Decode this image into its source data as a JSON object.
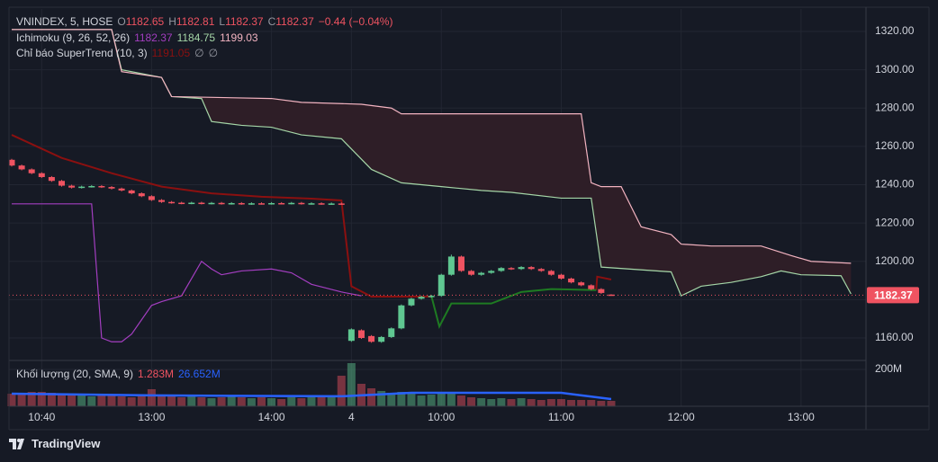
{
  "chart_data": {
    "type": "candlestick",
    "xlim": [
      -0.27,
      85.5
    ],
    "xticks": [
      {
        "value": 3,
        "label": "10:40"
      },
      {
        "value": 14,
        "label": "13:00"
      },
      {
        "value": 26,
        "label": "14:00"
      },
      {
        "value": 34,
        "label": "4"
      },
      {
        "value": 43,
        "label": "10:00"
      },
      {
        "value": 55,
        "label": "11:00"
      },
      {
        "value": 67,
        "label": "12:00"
      },
      {
        "value": 79,
        "label": "13:00"
      }
    ],
    "ylim": [
      1148.74,
      1331.73
    ],
    "yticks": [
      {
        "value": 1160,
        "label": "1160.00"
      },
      {
        "value": 1180,
        "label": "1180.00"
      },
      {
        "value": 1200,
        "label": "1200.00"
      },
      {
        "value": 1220,
        "label": "1220.00"
      },
      {
        "value": 1240,
        "label": "1240.00"
      },
      {
        "value": 1260,
        "label": "1260.00"
      },
      {
        "value": 1280,
        "label": "1280.00"
      },
      {
        "value": 1300,
        "label": "1300.00"
      },
      {
        "value": 1320,
        "label": "1320.00"
      }
    ],
    "grid": true,
    "up_color": "#5fc791",
    "down_color": "#ef5361",
    "open": [
      1253,
      1250,
      1248,
      1246,
      1244,
      1242,
      1239.5,
      1238.5,
      1239,
      1239.3,
      1238.8,
      1238,
      1237,
      1235.5,
      1234,
      1232,
      1231,
      1230.6,
      1230.3,
      1230.6,
      1230.2,
      1230.5,
      1230.1,
      1230.4,
      1230,
      1230.3,
      1230.1,
      1230.4,
      1230.2,
      1230.5,
      1230.1,
      1230.3,
      1230,
      1230.2,
      1158.5,
      1164,
      1161,
      1158,
      1160.5,
      1165,
      1177,
      1180.5,
      1181.5,
      1182,
      1193,
      1202.5,
      1195,
      1193,
      1194,
      1195,
      1196.5,
      1196,
      1197,
      1196,
      1195,
      1193,
      1191,
      1189,
      1187.5,
      1185.5,
      1182.65
    ],
    "high": [
      1253.5,
      1250.5,
      1248.5,
      1246.5,
      1244.5,
      1242.5,
      1240,
      1239.5,
      1239.8,
      1239.8,
      1239.3,
      1238.5,
      1237.5,
      1236,
      1234.5,
      1232.5,
      1231.5,
      1231.1,
      1231.1,
      1231.1,
      1231,
      1231,
      1230.9,
      1230.9,
      1230.8,
      1230.8,
      1230.9,
      1230.9,
      1231,
      1231,
      1230.8,
      1230.8,
      1230.7,
      1230.7,
      1165,
      1164.5,
      1161.5,
      1161,
      1165.5,
      1177.5,
      1181,
      1182,
      1182.5,
      1193.5,
      1203.5,
      1203,
      1195.5,
      1194.5,
      1195.5,
      1197,
      1197,
      1197.5,
      1197.5,
      1196.5,
      1195.5,
      1193.5,
      1191.5,
      1189.5,
      1188,
      1186,
      1182.81
    ],
    "low": [
      1249.5,
      1247.5,
      1245.5,
      1243.5,
      1241.5,
      1239,
      1238,
      1238,
      1238.5,
      1238.3,
      1237.5,
      1236.5,
      1235,
      1233.5,
      1231.5,
      1230.5,
      1230.1,
      1229.8,
      1229.8,
      1229.7,
      1229.7,
      1229.6,
      1229.6,
      1229.5,
      1229.5,
      1229.6,
      1229.6,
      1229.7,
      1229.7,
      1229.6,
      1229.6,
      1229.5,
      1229.5,
      1229.5,
      1158,
      1159.5,
      1157.5,
      1157.5,
      1160,
      1164.5,
      1176.5,
      1180,
      1181,
      1181.5,
      1192.5,
      1194.5,
      1192.5,
      1192.5,
      1193.5,
      1194.5,
      1195.5,
      1195.5,
      1195.5,
      1194.5,
      1192.5,
      1190.5,
      1188.5,
      1187,
      1185,
      1183,
      1182.37
    ],
    "close": [
      1250,
      1248,
      1246,
      1244,
      1242,
      1239.5,
      1238.5,
      1239,
      1239.3,
      1238.8,
      1238,
      1237,
      1235.5,
      1234,
      1232,
      1231,
      1230.6,
      1230.3,
      1230.6,
      1230.2,
      1230.5,
      1230.1,
      1230.4,
      1230,
      1230.3,
      1230.1,
      1230.4,
      1230.2,
      1230.5,
      1230.1,
      1230.3,
      1230,
      1230.2,
      1230,
      1164.5,
      1160,
      1158,
      1160.5,
      1165,
      1177,
      1180.5,
      1181.5,
      1182,
      1193,
      1202.5,
      1195,
      1193,
      1194,
      1195,
      1196.5,
      1196,
      1197,
      1196,
      1195,
      1193,
      1191,
      1189,
      1187.5,
      1185.5,
      1183.5,
      1182.37
    ],
    "last_price": 1182.37,
    "cloud_color": "#2e1e27",
    "overlays": [
      {
        "color": "#a33ec0",
        "x": [
          0,
          8,
          9,
          10,
          11,
          12,
          14,
          15,
          17,
          19,
          20,
          21,
          23,
          26,
          28,
          30,
          33,
          35
        ],
        "values": [
          1230,
          1230,
          1160,
          1158,
          1158,
          1162,
          1177,
          1179,
          1182,
          1200,
          1196,
          1193,
          1195,
          1196,
          1194,
          1188,
          1184,
          1182
        ]
      },
      {
        "color": "#a5d6a7",
        "x": [
          0,
          10,
          11,
          15,
          16,
          19,
          20,
          23,
          26,
          29,
          33,
          36,
          39,
          43,
          47,
          50,
          55,
          58,
          59,
          66,
          67,
          69,
          72,
          75,
          77,
          79,
          83,
          84
        ],
        "values": [
          1321,
          1321,
          1300,
          1296,
          1286,
          1285,
          1273,
          1271,
          1270,
          1266,
          1264,
          1248,
          1241,
          1239,
          1237,
          1236,
          1233,
          1233,
          1197,
          1194.5,
          1182,
          1187,
          1189,
          1192,
          1195,
          1193,
          1192.5,
          1183
        ]
      },
      {
        "color": "#f2b3c0",
        "x": [
          0,
          10,
          11,
          15,
          16,
          26,
          29,
          35,
          38,
          39,
          46,
          57,
          58,
          59,
          61,
          63,
          66,
          67,
          70,
          75,
          78,
          80,
          84
        ],
        "values": [
          1321,
          1321,
          1299,
          1296,
          1286,
          1285,
          1283,
          1282,
          1280,
          1277,
          1277,
          1277,
          1241,
          1239,
          1239,
          1218,
          1214,
          1209,
          1208,
          1208,
          1203,
          1200,
          1199
        ]
      },
      {
        "color": "#8b1010",
        "x": [
          0,
          5,
          10,
          15,
          20,
          25,
          30,
          33,
          34,
          36,
          42,
          50,
          58.5,
          58.6,
          60
        ],
        "values": [
          1266,
          1254,
          1246,
          1239,
          1235.5,
          1233.7,
          1232.7,
          1231.8,
          1187,
          1181.6,
          1181.6,
          null,
          1185,
          1192,
          1190.5
        ]
      },
      {
        "color": "#1e7b22",
        "x": [
          42,
          42.8,
          44,
          48,
          51,
          54,
          58.5
        ],
        "values": [
          1182,
          1166,
          1178,
          1178,
          1184,
          1185.5,
          1185
        ]
      }
    ],
    "volume": {
      "ylim": [
        0,
        243.9
      ],
      "yticks": [
        {
          "value": 200,
          "label": "200M"
        }
      ],
      "values": [
        68.3,
        73.2,
        78.1,
        78.1,
        73.2,
        68.3,
        63.4,
        58.6,
        53.7,
        63.4,
        58.6,
        53.7,
        48.8,
        58.6,
        92.7,
        58.6,
        53.7,
        48.8,
        53.7,
        48.8,
        43.9,
        48.8,
        53.7,
        48.8,
        43.9,
        48.8,
        43.9,
        39,
        48.8,
        43.9,
        48.8,
        53.7,
        58.6,
        165.9,
        234.2,
        122,
        97.6,
        83,
        73.2,
        78.1,
        68.3,
        58.6,
        63.4,
        73.2,
        68.3,
        58.6,
        48.8,
        43.9,
        39,
        43.9,
        39,
        43.9,
        39,
        34.2,
        39,
        39,
        34.2,
        34.2,
        34.2,
        29.3,
        29.3
      ],
      "sma": {
        "color": "#2962ff",
        "x": [
          0,
          14,
          33,
          40,
          55,
          60
        ],
        "values": [
          68,
          59,
          54,
          73,
          73,
          39
        ]
      }
    },
    "legend": {
      "main": {
        "symbol": "VNINDEX, 5, HOSE",
        "ohlc": [
          {
            "key": "O",
            "value": 1182.65
          },
          {
            "key": "H",
            "value": 1182.81
          },
          {
            "key": "L",
            "value": 1182.37
          },
          {
            "key": "C",
            "value": 1182.37
          }
        ],
        "change": "−0.44 (−0.04%)"
      },
      "ichimoku": {
        "label": "Ichimoku (9, 26, 52, 26)",
        "values": [
          1182.37,
          1184.75,
          1199.03
        ]
      },
      "supertrend": {
        "label": "Chỉ báo SuperTrend (10, 3)",
        "values": [
          1191.05,
          "∅",
          "∅"
        ]
      },
      "volume": {
        "label": "Khối lượng (20, SMA, 9)",
        "values": [
          "1.283M",
          "26.652M"
        ]
      }
    }
  },
  "footer": {
    "brand": "TradingView"
  }
}
